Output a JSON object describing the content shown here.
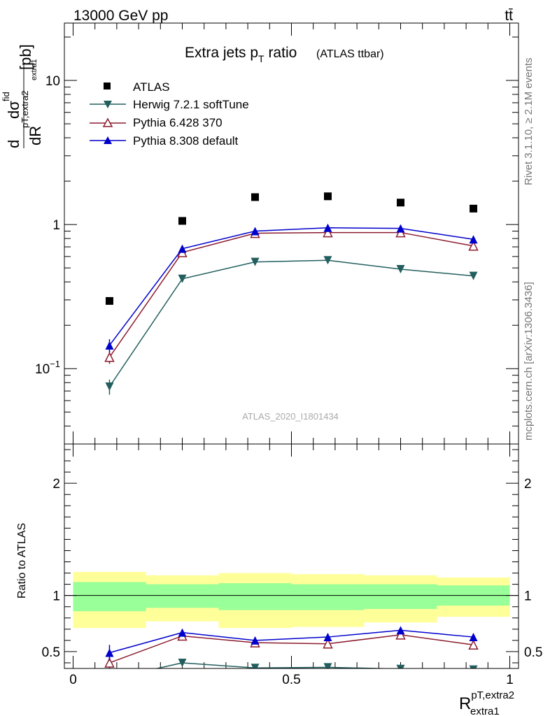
{
  "header": {
    "energy_label": "13000 GeV pp",
    "process_label": "tt̄"
  },
  "side_labels": {
    "rivet": "Rivet 3.1.10, ≥ 2.1M events",
    "mcplots": "mcplots.cern.ch [arXiv:1306.3436]"
  },
  "watermark": "ATLAS_2020_I1801434",
  "colors": {
    "data": "#000000",
    "herwig": "#235e5e",
    "pythia6": "#8c1c2f",
    "pythia8": "#0000cc",
    "band_inner": "#99ff99",
    "band_outer": "#ffff99"
  },
  "chart_data": [
    {
      "type": "scatter",
      "title_main": "Extra jets p",
      "title_sub": "T",
      "title_rest": " ratio",
      "title_note": "(ATLAS ttbar)",
      "ylabel": "dσ^fid / dR^pT,extra2_extra1 [pb]",
      "yscale": "log",
      "ylim": [
        0.03,
        25
      ],
      "xlim": [
        -0.02,
        1.02
      ],
      "y_ticks": [
        "10",
        "1"
      ],
      "y_tick_power_label": "10",
      "y_tick_power_exp": "−1",
      "legend_position": "top-left",
      "x": [
        0.0833,
        0.25,
        0.4167,
        0.5833,
        0.75,
        0.9167
      ],
      "series": [
        {
          "name": "ATLAS",
          "key": "data",
          "marker": "square",
          "values": [
            0.295,
            1.06,
            1.55,
            1.57,
            1.42,
            1.29
          ]
        },
        {
          "name": "Herwig 7.2.1 softTune",
          "key": "herwig",
          "marker": "triangle-down",
          "values": [
            0.075,
            0.42,
            0.55,
            0.565,
            0.49,
            0.44
          ]
        },
        {
          "name": "Pythia 6.428 370",
          "key": "pythia6",
          "marker": "triangle-up-open",
          "values": [
            0.12,
            0.64,
            0.87,
            0.88,
            0.88,
            0.71
          ]
        },
        {
          "name": "Pythia 8.308 default",
          "key": "pythia8",
          "marker": "triangle-up",
          "values": [
            0.145,
            0.68,
            0.9,
            0.95,
            0.94,
            0.79
          ]
        }
      ],
      "errors": {
        "herwig": [
          0.009,
          0.006,
          0.006,
          0.006,
          0.006,
          0.006
        ],
        "pythia6": [
          0.012,
          0.008,
          0.008,
          0.008,
          0.008,
          0.008
        ],
        "pythia8": [
          0.015,
          0.008,
          0.008,
          0.008,
          0.008,
          0.008
        ]
      }
    },
    {
      "type": "scatter",
      "ylabel": "Ratio to ATLAS",
      "xlabel_main": "R",
      "xlabel_sup": "pT,extra2",
      "xlabel_sub": "extra1",
      "ylim": [
        0.35,
        2.35
      ],
      "xlim": [
        -0.02,
        1.02
      ],
      "x_ticks": [
        0,
        0.5,
        1
      ],
      "x_tick_labels": [
        "0",
        "0.5",
        "1"
      ],
      "y_ticks": [
        0.5,
        1,
        2
      ],
      "y_tick_labels": [
        "0.5",
        "1",
        "2"
      ],
      "bins": [
        [
          0,
          0.1667
        ],
        [
          0.1667,
          0.3333
        ],
        [
          0.3333,
          0.5
        ],
        [
          0.5,
          0.6667
        ],
        [
          0.6667,
          0.8333
        ],
        [
          0.8333,
          1.0
        ]
      ],
      "band_inner": [
        [
          0.86,
          1.12
        ],
        [
          0.89,
          1.1
        ],
        [
          0.87,
          1.11
        ],
        [
          0.87,
          1.1
        ],
        [
          0.88,
          1.1
        ],
        [
          0.91,
          1.09
        ]
      ],
      "band_outer": [
        [
          0.71,
          1.21
        ],
        [
          0.77,
          1.18
        ],
        [
          0.71,
          1.2
        ],
        [
          0.72,
          1.19
        ],
        [
          0.76,
          1.18
        ],
        [
          0.81,
          1.16
        ]
      ],
      "x": [
        0.0833,
        0.25,
        0.4167,
        0.5833,
        0.75,
        0.9167
      ],
      "series": [
        {
          "name": "Herwig 7.2.1 softTune",
          "key": "herwig",
          "values": [
            0.255,
            0.4,
            0.355,
            0.36,
            0.345,
            0.34
          ]
        },
        {
          "name": "Pythia 6.428 370",
          "key": "pythia6",
          "values": [
            0.4,
            0.64,
            0.58,
            0.57,
            0.65,
            0.56
          ]
        },
        {
          "name": "Pythia 8.308 default",
          "key": "pythia8",
          "values": [
            0.49,
            0.67,
            0.6,
            0.63,
            0.69,
            0.63
          ]
        }
      ],
      "errors": {
        "pythia6": [
          0.05,
          0.02,
          0.02,
          0.02,
          0.02,
          0.02
        ],
        "pythia8": [
          0.07,
          0.025,
          0.025,
          0.025,
          0.025,
          0.025
        ]
      }
    }
  ]
}
